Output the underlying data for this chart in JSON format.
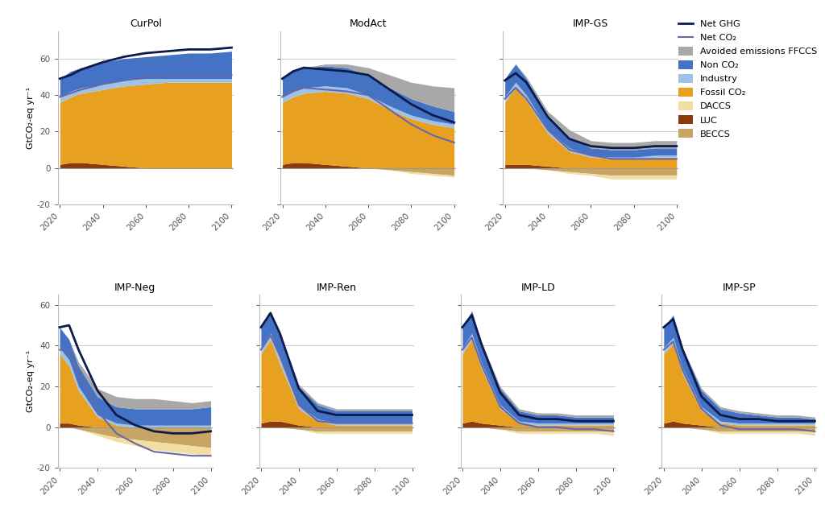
{
  "years": [
    2020,
    2025,
    2030,
    2040,
    2050,
    2060,
    2070,
    2080,
    2090,
    2100
  ],
  "panels_row1": [
    "CurPol",
    "ModAct",
    "IMP-GS"
  ],
  "panels_row2": [
    "IMP-Neg",
    "IMP-Ren",
    "IMP-LD",
    "IMP-SP"
  ],
  "colors": {
    "fossil_co2": "#E8A020",
    "non_co2": "#4472C4",
    "industry": "#9DC3E6",
    "avoided_ffccs": "#A8A8A8",
    "daccs": "#F0DFA0",
    "luc": "#8B3A0A",
    "beccs": "#C8A465",
    "net_ghg_line": "#0D1B4B",
    "net_co2_line": "#6868A8"
  },
  "CurPol": {
    "fossil_co2": [
      34,
      36,
      38,
      41,
      44,
      46,
      47,
      47,
      47,
      47
    ],
    "industry": [
      3,
      3,
      3,
      3,
      3,
      3,
      2,
      2,
      2,
      2
    ],
    "non_co2": [
      10,
      11,
      11,
      12,
      12,
      12,
      13,
      14,
      14,
      15
    ],
    "avoided_ffccs": [
      0,
      0,
      0,
      0,
      0,
      0,
      0,
      0,
      0,
      0
    ],
    "daccs": [
      0,
      0,
      0,
      0,
      0,
      0,
      0,
      0,
      0,
      0
    ],
    "luc": [
      2,
      3,
      3,
      2,
      1,
      0,
      0,
      0,
      0,
      0
    ],
    "beccs": [
      0,
      0,
      0,
      0,
      0,
      0,
      0,
      0,
      0,
      0
    ],
    "net_ghg": [
      49,
      51,
      54,
      58,
      61,
      63,
      64,
      65,
      65,
      66
    ],
    "net_co2": [
      39,
      41,
      43,
      46,
      48,
      50,
      51,
      51,
      51,
      51
    ]
  },
  "ModAct": {
    "fossil_co2": [
      34,
      36,
      38,
      40,
      40,
      38,
      32,
      27,
      24,
      22
    ],
    "industry": [
      3,
      3,
      3,
      3,
      3,
      2,
      2,
      2,
      2,
      2
    ],
    "non_co2": [
      10,
      11,
      11,
      11,
      11,
      11,
      10,
      9,
      8,
      7
    ],
    "avoided_ffccs": [
      0,
      0,
      0,
      1,
      2,
      4,
      7,
      9,
      11,
      13
    ],
    "daccs": [
      0,
      0,
      0,
      0,
      0,
      0,
      0,
      -1,
      -1,
      -1
    ],
    "luc": [
      2,
      3,
      3,
      2,
      1,
      0,
      0,
      0,
      0,
      0
    ],
    "beccs": [
      0,
      0,
      0,
      0,
      0,
      0,
      -1,
      -2,
      -3,
      -4
    ],
    "net_ghg": [
      49,
      53,
      55,
      54,
      53,
      51,
      43,
      35,
      29,
      25
    ],
    "net_co2": [
      39,
      42,
      44,
      43,
      42,
      40,
      32,
      24,
      18,
      14
    ]
  },
  "IMP-GS": {
    "fossil_co2": [
      34,
      42,
      35,
      18,
      9,
      6,
      5,
      5,
      6,
      6
    ],
    "industry": [
      3,
      3,
      3,
      2,
      2,
      1,
      1,
      1,
      1,
      1
    ],
    "non_co2": [
      10,
      10,
      9,
      8,
      6,
      4,
      4,
      4,
      4,
      4
    ],
    "avoided_ffccs": [
      0,
      0,
      1,
      2,
      4,
      4,
      4,
      4,
      4,
      4
    ],
    "daccs": [
      0,
      0,
      0,
      0,
      -1,
      -1,
      -2,
      -2,
      -2,
      -2
    ],
    "luc": [
      2,
      2,
      2,
      1,
      0,
      0,
      0,
      0,
      0,
      0
    ],
    "beccs": [
      0,
      0,
      0,
      -1,
      -2,
      -3,
      -4,
      -4,
      -4,
      -4
    ],
    "net_ghg": [
      48,
      52,
      47,
      28,
      16,
      12,
      11,
      11,
      12,
      12
    ],
    "net_co2": [
      38,
      44,
      38,
      21,
      10,
      7,
      5,
      5,
      5,
      5
    ]
  },
  "IMP-Neg": {
    "fossil_co2": [
      34,
      28,
      17,
      5,
      1,
      0,
      0,
      0,
      0,
      0
    ],
    "industry": [
      3,
      3,
      2,
      1,
      1,
      1,
      1,
      1,
      1,
      1
    ],
    "non_co2": [
      10,
      10,
      10,
      9,
      8,
      8,
      8,
      8,
      8,
      9
    ],
    "avoided_ffccs": [
      0,
      0,
      2,
      4,
      5,
      5,
      5,
      4,
      3,
      3
    ],
    "daccs": [
      0,
      0,
      0,
      -1,
      -2,
      -3,
      -4,
      -4,
      -4,
      -4
    ],
    "luc": [
      2,
      2,
      1,
      0,
      0,
      0,
      0,
      0,
      0,
      0
    ],
    "beccs": [
      0,
      0,
      -1,
      -3,
      -5,
      -6,
      -7,
      -8,
      -9,
      -10
    ],
    "net_ghg": [
      49,
      50,
      38,
      18,
      6,
      1,
      -2,
      -3,
      -3,
      -2
    ],
    "net_co2": [
      38,
      37,
      26,
      8,
      -3,
      -8,
      -12,
      -13,
      -14,
      -14
    ]
  },
  "IMP-Ren": {
    "fossil_co2": [
      34,
      40,
      28,
      8,
      3,
      1,
      1,
      1,
      1,
      1
    ],
    "industry": [
      3,
      3,
      3,
      2,
      1,
      1,
      1,
      1,
      1,
      1
    ],
    "non_co2": [
      10,
      11,
      11,
      9,
      7,
      6,
      6,
      6,
      6,
      6
    ],
    "avoided_ffccs": [
      0,
      0,
      0,
      1,
      1,
      1,
      1,
      1,
      1,
      1
    ],
    "daccs": [
      0,
      0,
      0,
      0,
      -1,
      -1,
      -1,
      -1,
      -1,
      -1
    ],
    "luc": [
      2,
      3,
      3,
      1,
      0,
      0,
      0,
      0,
      0,
      0
    ],
    "beccs": [
      0,
      0,
      0,
      -1,
      -2,
      -2,
      -2,
      -2,
      -2,
      -2
    ],
    "net_ghg": [
      49,
      56,
      46,
      19,
      8,
      6,
      6,
      6,
      6,
      6
    ],
    "net_co2": [
      38,
      45,
      35,
      11,
      3,
      2,
      2,
      2,
      2,
      2
    ]
  },
  "IMP-LD": {
    "fossil_co2": [
      34,
      40,
      27,
      8,
      2,
      1,
      1,
      1,
      1,
      1
    ],
    "industry": [
      3,
      3,
      3,
      2,
      1,
      1,
      1,
      1,
      1,
      1
    ],
    "non_co2": [
      10,
      11,
      10,
      8,
      5,
      4,
      4,
      3,
      3,
      3
    ],
    "avoided_ffccs": [
      0,
      0,
      0,
      1,
      1,
      1,
      1,
      1,
      1,
      1
    ],
    "daccs": [
      0,
      0,
      0,
      0,
      -1,
      -1,
      -1,
      -1,
      -1,
      -2
    ],
    "luc": [
      2,
      3,
      2,
      1,
      0,
      0,
      0,
      0,
      0,
      0
    ],
    "beccs": [
      0,
      0,
      0,
      -1,
      -2,
      -2,
      -2,
      -2,
      -2,
      -2
    ],
    "net_ghg": [
      49,
      55,
      41,
      17,
      6,
      4,
      4,
      3,
      3,
      3
    ],
    "net_co2": [
      38,
      44,
      31,
      10,
      2,
      0,
      0,
      -1,
      -1,
      -2
    ]
  },
  "IMP-SP": {
    "fossil_co2": [
      34,
      38,
      24,
      7,
      2,
      1,
      1,
      1,
      1,
      1
    ],
    "industry": [
      3,
      3,
      3,
      2,
      1,
      1,
      1,
      1,
      1,
      1
    ],
    "non_co2": [
      10,
      11,
      10,
      8,
      6,
      5,
      4,
      3,
      3,
      2
    ],
    "avoided_ffccs": [
      0,
      0,
      0,
      1,
      1,
      1,
      1,
      1,
      1,
      1
    ],
    "daccs": [
      0,
      0,
      0,
      0,
      -1,
      -1,
      -1,
      -1,
      -1,
      -2
    ],
    "luc": [
      2,
      3,
      2,
      1,
      0,
      0,
      0,
      0,
      0,
      0
    ],
    "beccs": [
      0,
      0,
      0,
      -1,
      -2,
      -2,
      -2,
      -2,
      -2,
      -2
    ],
    "net_ghg": [
      49,
      53,
      38,
      15,
      6,
      4,
      4,
      3,
      3,
      3
    ],
    "net_co2": [
      38,
      42,
      28,
      9,
      1,
      -1,
      -1,
      -1,
      -1,
      -2
    ]
  },
  "ylim_row1": [
    -20,
    75
  ],
  "ylim_row2": [
    -20,
    65
  ],
  "yticks_row1": [
    -20,
    0,
    20,
    40,
    60
  ],
  "yticks_row2": [
    -20,
    0,
    20,
    40,
    60
  ],
  "xlabel_years": [
    2020,
    2040,
    2060,
    2080,
    2100
  ],
  "ylabel": "GtCO₂-eq yr⁻¹",
  "background_color": "#FFFFFF",
  "gridline_color": "#CCCCCC"
}
